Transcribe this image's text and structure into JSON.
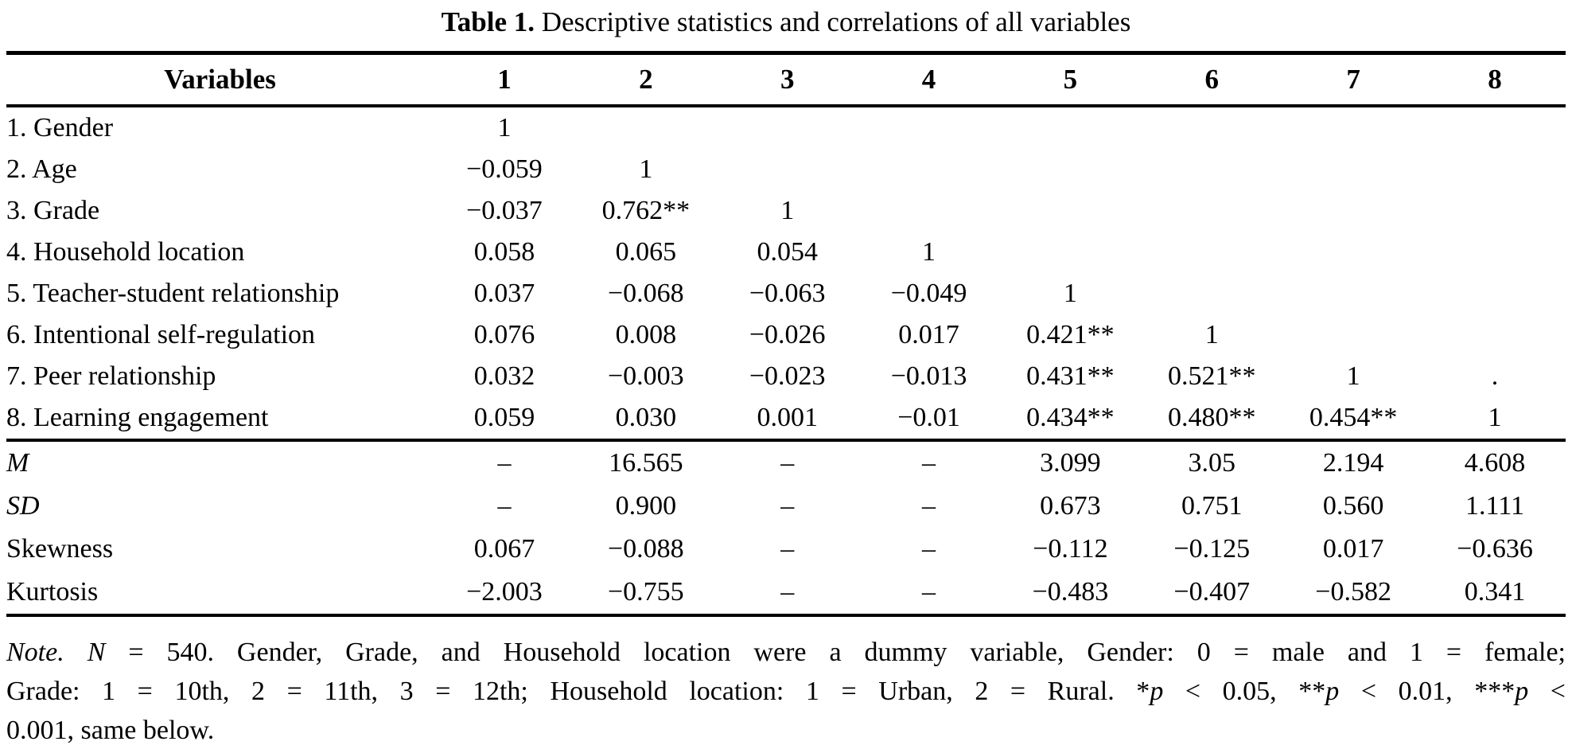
{
  "colors": {
    "text": "#000000",
    "background": "#ffffff"
  },
  "title": {
    "label": "Table 1.",
    "text": "Descriptive statistics and correlations of all variables"
  },
  "table": {
    "columns": [
      "Variables",
      "1",
      "2",
      "3",
      "4",
      "5",
      "6",
      "7",
      "8"
    ],
    "rows": [
      {
        "label": "1. Gender",
        "values": [
          "1",
          "",
          "",
          "",
          "",
          "",
          "",
          ""
        ]
      },
      {
        "label": "2. Age",
        "values": [
          "−0.059",
          "1",
          "",
          "",
          "",
          "",
          "",
          ""
        ]
      },
      {
        "label": "3. Grade",
        "values": [
          "−0.037",
          "0.762**",
          "1",
          "",
          "",
          "",
          "",
          ""
        ]
      },
      {
        "label": "4. Household location",
        "values": [
          "0.058",
          "0.065",
          "0.054",
          "1",
          "",
          "",
          "",
          ""
        ]
      },
      {
        "label": "5. Teacher-student relationship",
        "values": [
          "0.037",
          "−0.068",
          "−0.063",
          "−0.049",
          "1",
          "",
          "",
          ""
        ]
      },
      {
        "label": "6. Intentional self-regulation",
        "values": [
          "0.076",
          "0.008",
          "−0.026",
          "0.017",
          "0.421**",
          "1",
          "",
          ""
        ]
      },
      {
        "label": "7. Peer relationship",
        "values": [
          "0.032",
          "−0.003",
          "−0.023",
          "−0.013",
          "0.431**",
          "0.521**",
          "1",
          "."
        ]
      },
      {
        "label": "8. Learning engagement",
        "values": [
          "0.059",
          "0.030",
          "0.001",
          "−0.01",
          "0.434**",
          "0.480**",
          "0.454**",
          "1"
        ]
      }
    ],
    "stats": [
      {
        "label": "M",
        "italic": true,
        "values": [
          "–",
          "16.565",
          "–",
          "–",
          "3.099",
          "3.05",
          "2.194",
          "4.608"
        ]
      },
      {
        "label": "SD",
        "italic": true,
        "values": [
          "–",
          "0.900",
          "–",
          "–",
          "0.673",
          "0.751",
          "0.560",
          "1.111"
        ]
      },
      {
        "label": "Skewness",
        "italic": false,
        "values": [
          "0.067",
          "−0.088",
          "–",
          "–",
          "−0.112",
          "−0.125",
          "0.017",
          "−0.636"
        ]
      },
      {
        "label": "Kurtosis",
        "italic": false,
        "values": [
          "−2.003",
          "−0.755",
          "–",
          "–",
          "−0.483",
          "−0.407",
          "−0.582",
          "0.341"
        ]
      }
    ]
  },
  "note": {
    "lines": [
      {
        "justify": true,
        "segments": [
          {
            "t": "Note.",
            "i": true
          },
          {
            "t": " ",
            "i": false
          },
          {
            "t": "N",
            "i": true
          },
          {
            "t": " = 540. Gender, Grade, and Household location were a dummy variable, Gender: 0 = male and 1 = female;",
            "i": false
          }
        ]
      },
      {
        "justify": true,
        "segments": [
          {
            "t": "Grade: 1 = 10th, 2 = 11th, 3 = 12th; Household location: 1 = Urban, 2 = Rural. *",
            "i": false
          },
          {
            "t": "p",
            "i": true
          },
          {
            "t": " < 0.05, **",
            "i": false
          },
          {
            "t": "p",
            "i": true
          },
          {
            "t": " < 0.01, ***",
            "i": false
          },
          {
            "t": "p",
            "i": true
          },
          {
            "t": " <",
            "i": false
          }
        ]
      },
      {
        "justify": false,
        "segments": [
          {
            "t": "0.001, same below.",
            "i": false
          }
        ]
      }
    ]
  }
}
